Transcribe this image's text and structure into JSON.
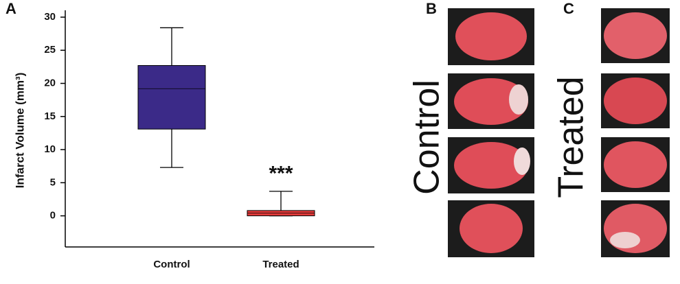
{
  "chart_data": {
    "type": "box",
    "panel_label": "A",
    "ylabel": "Infarct Volume (mm³)",
    "categories": [
      "Control",
      "Treated"
    ],
    "boxes": [
      {
        "min": 7.3,
        "q1": 13.1,
        "median": 19.2,
        "q3": 22.7,
        "max": 28.4,
        "color": "#3b2a88"
      },
      {
        "min": 0,
        "q1": 0,
        "median": 0.4,
        "q3": 0.8,
        "max": 3.7,
        "color": "#e23a3a"
      }
    ],
    "annotations": [
      {
        "text": "***",
        "category": 1,
        "y": 6.2
      }
    ],
    "ylim": [
      -4.7,
      30
    ],
    "yticks": [
      0,
      5,
      10,
      15,
      20,
      25,
      30
    ]
  },
  "panels": [
    {
      "label": "B",
      "caption": "Control"
    },
    {
      "label": "C",
      "caption": "Treated"
    }
  ]
}
